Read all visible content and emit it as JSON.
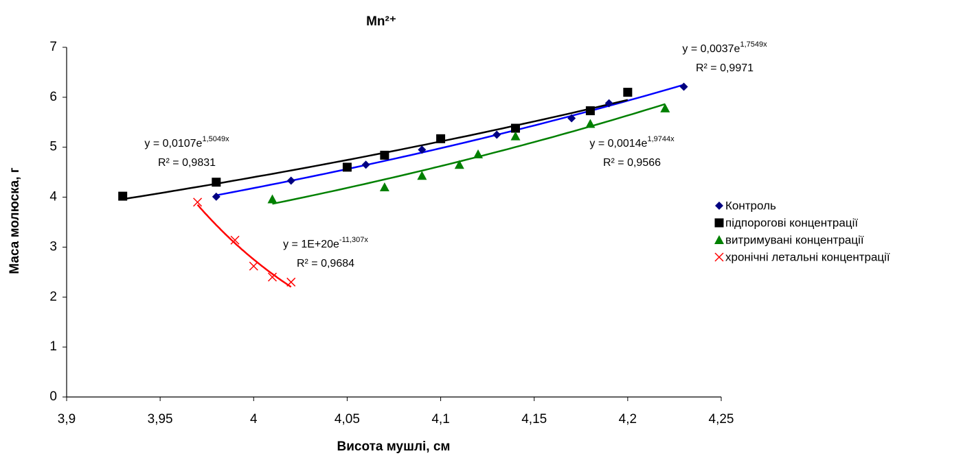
{
  "chart_data": {
    "type": "scatter",
    "title": "Mn²⁺",
    "x_label": "Висота мушлі, см",
    "y_label": "Маса молюска, г",
    "xlim": [
      3.9,
      4.25
    ],
    "xticks": [
      {
        "value": 3.9,
        "label": "3,9"
      },
      {
        "value": 3.95,
        "label": "3,95"
      },
      {
        "value": 4,
        "label": "4"
      },
      {
        "value": 4.05,
        "label": "4,05"
      },
      {
        "value": 4.1,
        "label": "4,1"
      },
      {
        "value": 4.15,
        "label": "4,15"
      },
      {
        "value": 4.2,
        "label": "4,2"
      },
      {
        "value": 4.25,
        "label": "4,25"
      }
    ],
    "ylim": [
      0,
      7
    ],
    "yticks": [
      0,
      1,
      2,
      3,
      4,
      5,
      6,
      7
    ],
    "grid": false,
    "legend": "right",
    "trendline": "exponential",
    "series": [
      {
        "name": "Контроль",
        "color": "#000080",
        "marker": "diamond",
        "trendline_color": "#0000ff",
        "x": [
          3.98,
          4.02,
          4.06,
          4.09,
          4.13,
          4.17,
          4.19,
          4.23
        ],
        "values": [
          4.01,
          4.33,
          4.65,
          4.95,
          5.25,
          5.58,
          5.88,
          6.21
        ],
        "equation": "y = 0,0037e",
        "exponent": "1,7549x",
        "r2": "R² = 0,9971"
      },
      {
        "name": "підпорогові концентрації",
        "color": "#000000",
        "marker": "square",
        "trendline_color": "#000000",
        "x": [
          3.93,
          3.98,
          4.05,
          4.07,
          4.1,
          4.14,
          4.18,
          4.2
        ],
        "values": [
          4.02,
          4.3,
          4.6,
          4.84,
          5.17,
          5.38,
          5.73,
          6.1
        ],
        "equation": "y = 0,0107e",
        "exponent": "1,5049x",
        "r2": "R² = 0,9831"
      },
      {
        "name": "витримувані концентрації",
        "color": "#008000",
        "marker": "triangle",
        "trendline_color": "#008000",
        "x": [
          4.01,
          4.07,
          4.09,
          4.11,
          4.12,
          4.14,
          4.18,
          4.22
        ],
        "values": [
          3.96,
          4.2,
          4.43,
          4.65,
          4.86,
          5.22,
          5.47,
          5.78
        ],
        "equation": "y = 0,0014e",
        "exponent": "1,9744x",
        "r2": "R² = 0,9566"
      },
      {
        "name": "хронічні летальні концентрації",
        "color": "#ff0000",
        "marker": "cross",
        "trendline_color": "#ff0000",
        "x": [
          3.97,
          3.99,
          4.0,
          4.01,
          4.02
        ],
        "values": [
          3.9,
          3.14,
          2.62,
          2.4,
          2.3
        ],
        "equation": "y = 1E+20e",
        "exponent": "-11,307x",
        "r2": "R² = 0,9684"
      }
    ]
  }
}
